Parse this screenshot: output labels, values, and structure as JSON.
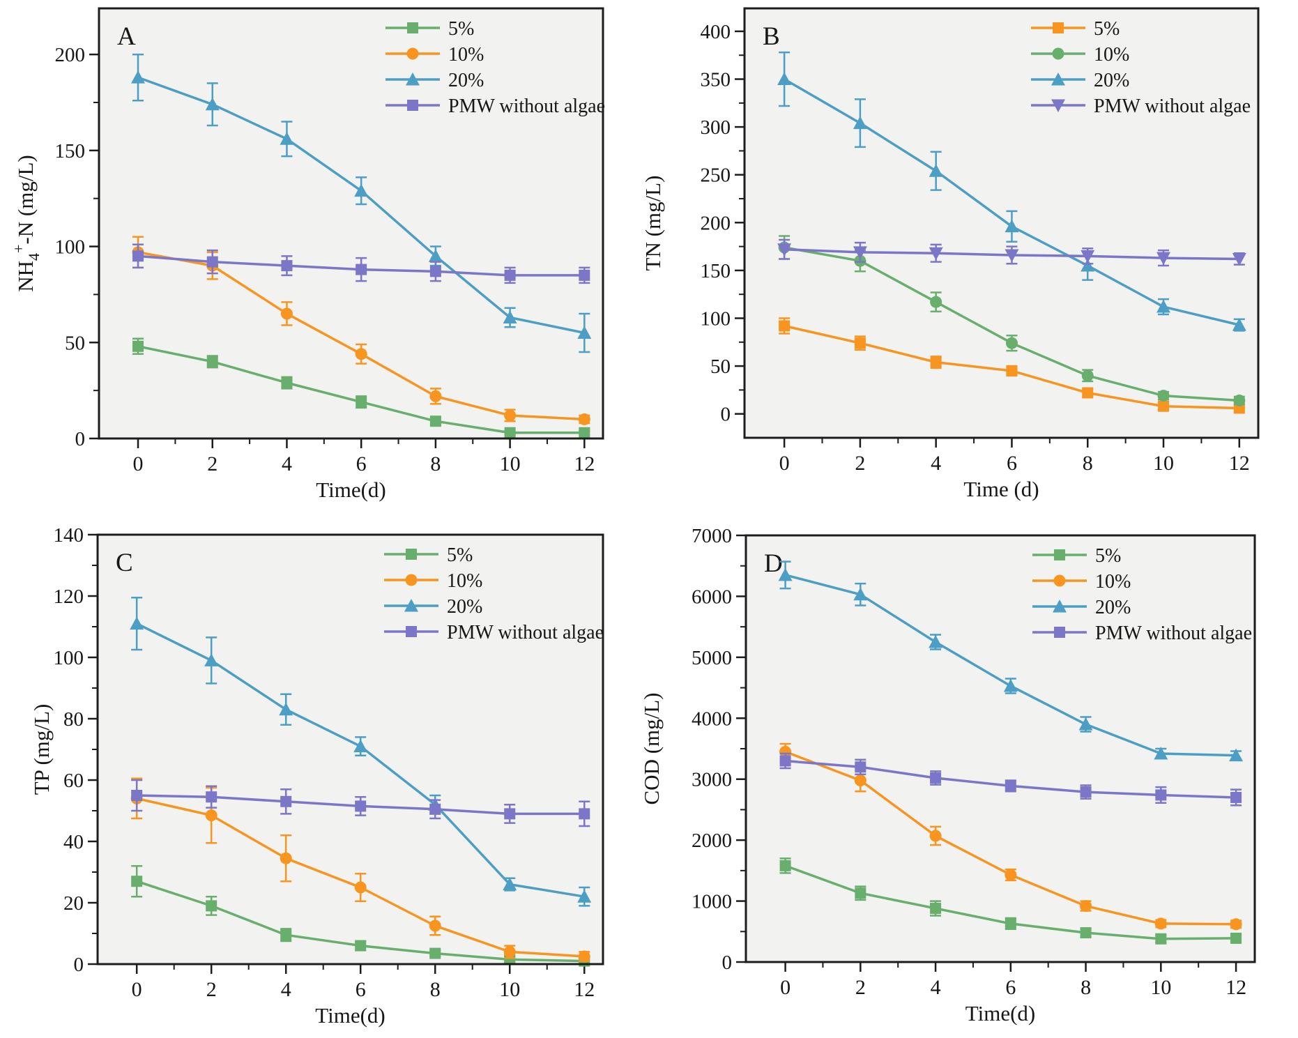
{
  "figure": {
    "background": "#ffffff",
    "plot_background": "#f2f2f0",
    "axis_color": "#1c1c1c",
    "text_color": "#161616"
  },
  "colors": {
    "green": "#68ae6c",
    "orange": "#f89420",
    "teal": "#4c9ec4",
    "purple": "#7b76c8"
  },
  "chart_data": [
    {
      "type": "line",
      "panel_label": "A",
      "xlabel": "Time(d)",
      "ylabel_parts": [
        {
          "t": "NH"
        },
        {
          "t": "4",
          "s": "sub"
        },
        {
          "t": "+",
          "s": "sup"
        },
        {
          "t": "-N (mg/L)"
        }
      ],
      "x": [
        0,
        2,
        4,
        6,
        8,
        10,
        12
      ],
      "xticks": [
        0,
        2,
        4,
        6,
        8,
        10,
        12
      ],
      "xlim": [
        -1.05,
        12.5
      ],
      "ylim": [
        0,
        224
      ],
      "yticks": [
        0,
        50,
        100,
        150,
        200
      ],
      "y_minor": 25,
      "legend_position": "top-right-inside",
      "series": [
        {
          "name": "5%",
          "color_key": "green",
          "marker": "square",
          "values": [
            48,
            40,
            29,
            19,
            9,
            3,
            3
          ],
          "errors": [
            4,
            3,
            3,
            3,
            2,
            1,
            1
          ]
        },
        {
          "name": "10%",
          "color_key": "orange",
          "marker": "circle",
          "values": [
            97,
            90,
            65,
            44,
            22,
            12,
            10
          ],
          "errors": [
            8,
            7,
            6,
            5,
            4,
            3,
            2
          ]
        },
        {
          "name": "20%",
          "color_key": "teal",
          "marker": "triangle-up",
          "values": [
            188,
            174,
            156,
            129,
            95,
            63,
            55
          ],
          "errors": [
            12,
            11,
            9,
            7,
            5,
            5,
            10
          ]
        },
        {
          "name": "PMW without algae",
          "color_key": "purple",
          "marker": "square",
          "values": [
            95,
            92,
            90,
            88,
            87,
            85,
            85
          ],
          "errors": [
            6,
            6,
            5,
            6,
            5,
            4,
            4
          ]
        }
      ]
    },
    {
      "type": "line",
      "panel_label": "B",
      "xlabel": "Time (d)",
      "ylabel_parts": [
        {
          "t": "TN (mg/L)"
        }
      ],
      "x": [
        0,
        2,
        4,
        6,
        8,
        10,
        12
      ],
      "xticks": [
        0,
        2,
        4,
        6,
        8,
        10,
        12
      ],
      "xlim": [
        -1.05,
        12.5
      ],
      "ylim": [
        -25,
        424
      ],
      "yticks": [
        0,
        50,
        100,
        150,
        200,
        250,
        300,
        350,
        400
      ],
      "y_minor": 25,
      "legend_position": "top-right-inside",
      "series": [
        {
          "name": "5%",
          "color_key": "orange",
          "marker": "square",
          "values": [
            92,
            74,
            54,
            45,
            22,
            8,
            6
          ],
          "errors": [
            8,
            7,
            6,
            5,
            4,
            3,
            3
          ]
        },
        {
          "name": "10%",
          "color_key": "green",
          "marker": "circle",
          "values": [
            174,
            160,
            117,
            74,
            40,
            19,
            14
          ],
          "errors": [
            12,
            11,
            10,
            8,
            6,
            4,
            4
          ]
        },
        {
          "name": "20%",
          "color_key": "teal",
          "marker": "triangle-up",
          "values": [
            350,
            304,
            254,
            196,
            155,
            112,
            93
          ],
          "errors": [
            28,
            25,
            20,
            16,
            15,
            8,
            6
          ]
        },
        {
          "name": "PMW without algae",
          "color_key": "purple",
          "marker": "triangle-down",
          "values": [
            172,
            169,
            168,
            166,
            165,
            163,
            162
          ],
          "errors": [
            10,
            10,
            9,
            9,
            8,
            8,
            6
          ]
        }
      ]
    },
    {
      "type": "line",
      "panel_label": "C",
      "xlabel": "Time(d)",
      "ylabel_parts": [
        {
          "t": "TP (mg/L)"
        }
      ],
      "x": [
        0,
        2,
        4,
        6,
        8,
        10,
        12
      ],
      "xticks": [
        0,
        2,
        4,
        6,
        8,
        10,
        12
      ],
      "xlim": [
        -1.05,
        12.5
      ],
      "ylim": [
        0,
        140
      ],
      "yticks": [
        0,
        20,
        40,
        60,
        80,
        100,
        120,
        140
      ],
      "y_minor": 10,
      "legend_position": "top-right-inside",
      "series": [
        {
          "name": "5%",
          "color_key": "green",
          "marker": "square",
          "values": [
            27,
            19,
            9.5,
            6,
            3.5,
            1.5,
            1
          ],
          "errors": [
            5,
            3,
            2,
            1.5,
            1,
            1,
            0.8
          ]
        },
        {
          "name": "10%",
          "color_key": "orange",
          "marker": "circle",
          "values": [
            54,
            48.5,
            34.5,
            25,
            12.5,
            4,
            2.5
          ],
          "errors": [
            6.5,
            9,
            7.5,
            4.5,
            3,
            2,
            1.5
          ]
        },
        {
          "name": "20%",
          "color_key": "teal",
          "marker": "triangle-up",
          "values": [
            111,
            99,
            83,
            71,
            52,
            26,
            22
          ],
          "errors": [
            8.5,
            7.5,
            5,
            3,
            3,
            2,
            3
          ]
        },
        {
          "name": "PMW without algae",
          "color_key": "purple",
          "marker": "square",
          "values": [
            55,
            54.5,
            53,
            51.5,
            50.5,
            49,
            49
          ],
          "errors": [
            5,
            3.5,
            4,
            3,
            3,
            3,
            4
          ]
        }
      ]
    },
    {
      "type": "line",
      "panel_label": "D",
      "xlabel": "Time(d)",
      "ylabel_parts": [
        {
          "t": "COD (mg/L)"
        }
      ],
      "x": [
        0,
        2,
        4,
        6,
        8,
        10,
        12
      ],
      "xticks": [
        0,
        2,
        4,
        6,
        8,
        10,
        12
      ],
      "xlim": [
        -1.05,
        12.5
      ],
      "ylim": [
        0,
        7000
      ],
      "yticks": [
        0,
        1000,
        2000,
        3000,
        4000,
        5000,
        6000,
        7000
      ],
      "y_minor": 500,
      "legend_position": "top-right-inside",
      "series": [
        {
          "name": "5%",
          "color_key": "green",
          "marker": "square",
          "values": [
            1580,
            1130,
            880,
            630,
            480,
            380,
            390
          ],
          "errors": [
            120,
            110,
            120,
            90,
            70,
            60,
            60
          ]
        },
        {
          "name": "10%",
          "color_key": "orange",
          "marker": "circle",
          "values": [
            3450,
            2980,
            2070,
            1430,
            920,
            630,
            620
          ],
          "errors": [
            130,
            180,
            150,
            90,
            80,
            60,
            60
          ]
        },
        {
          "name": "20%",
          "color_key": "teal",
          "marker": "triangle-up",
          "values": [
            6350,
            6030,
            5250,
            4530,
            3900,
            3420,
            3390
          ],
          "errors": [
            220,
            180,
            120,
            120,
            120,
            80,
            70
          ]
        },
        {
          "name": "PMW without algae",
          "color_key": "purple",
          "marker": "square",
          "values": [
            3300,
            3200,
            3020,
            2890,
            2790,
            2740,
            2700
          ],
          "errors": [
            120,
            120,
            110,
            90,
            110,
            130,
            130
          ]
        }
      ]
    }
  ]
}
